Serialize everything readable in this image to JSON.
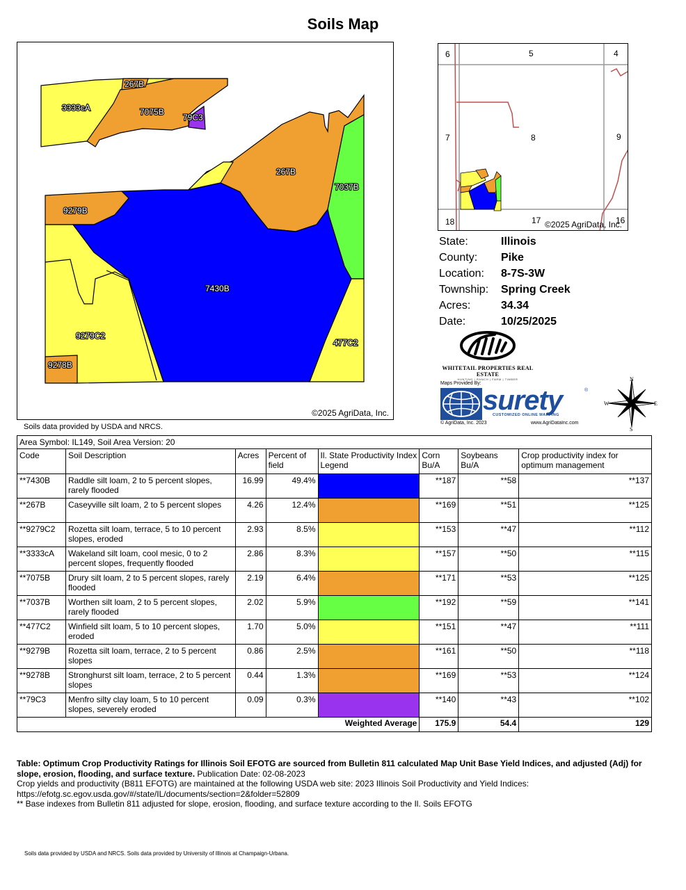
{
  "title": "Soils Map",
  "main_map": {
    "copyright": "©2025 AgriData, Inc.",
    "labels": [
      "267B",
      "3333cA",
      "7075B",
      "79C3",
      "267B",
      "7037B",
      "9279B",
      "7430B",
      "9279C2",
      "477C2",
      "9278B"
    ]
  },
  "soils_credit": "Soils data provided by USDA and NRCS.",
  "location_map": {
    "section_numbers": [
      "6",
      "5",
      "4",
      "7",
      "8",
      "9",
      "18",
      "17",
      "16"
    ],
    "copyright": "©2025 AgriData, Inc."
  },
  "info": [
    {
      "label": "State:",
      "value": "Illinois"
    },
    {
      "label": "County:",
      "value": "Pike"
    },
    {
      "label": "Location:",
      "value": "8-7S-3W"
    },
    {
      "label": "Township:",
      "value": "Spring Creek"
    },
    {
      "label": "Acres:",
      "value": "34.34"
    },
    {
      "label": "Date:",
      "value": "10/25/2025"
    }
  ],
  "whitetail_logo": {
    "name": "WHITETAIL PROPERTIES REAL ESTATE",
    "tagline": "HUNTING | RANCH | FARM | TIMBER"
  },
  "surety_logo": {
    "provided_by": "Maps Provided By:",
    "wordmark": "surety",
    "registered": "®",
    "subtitle": "CUSTOMIZED ONLINE MAPPING",
    "copyright": "© AgriData, Inc. 2023",
    "website": "www.AgriDataInc.com"
  },
  "compass": {
    "n": "N",
    "s": "S",
    "e": "E",
    "w": "W"
  },
  "colors": {
    "blue": "#0000ff",
    "orange": "#f0a030",
    "yellow": "#ffff55",
    "green": "#66ff44",
    "purple": "#9933ee"
  },
  "table": {
    "area_symbol": "Area Symbol: IL149, Soil Area Version: 20",
    "headers": [
      "Code",
      "Soil Description",
      "Acres",
      "Percent of field",
      "Il. State Productivity Index Legend",
      "Corn Bu/A",
      "Soybeans Bu/A",
      "Crop productivity index for optimum management"
    ],
    "rows": [
      {
        "code": "**7430B",
        "desc": "Raddle silt loam, 2 to 5 percent slopes, rarely flooded",
        "acres": "16.99",
        "pct": "49.4%",
        "color": "#0000ff",
        "corn": "**187",
        "soy": "**58",
        "cpi": "**137"
      },
      {
        "code": "**267B",
        "desc": "Caseyville silt loam, 2 to 5 percent slopes",
        "acres": "4.26",
        "pct": "12.4%",
        "color": "#f0a030",
        "corn": "**169",
        "soy": "**51",
        "cpi": "**125"
      },
      {
        "code": "**9279C2",
        "desc": "Rozetta silt loam, terrace, 5 to 10 percent slopes, eroded",
        "acres": "2.93",
        "pct": "8.5%",
        "color": "#ffff55",
        "corn": "**153",
        "soy": "**47",
        "cpi": "**112"
      },
      {
        "code": "**3333cA",
        "desc": "Wakeland silt loam, cool mesic, 0 to 2 percent slopes, frequently flooded",
        "acres": "2.86",
        "pct": "8.3%",
        "color": "#ffff55",
        "corn": "**157",
        "soy": "**50",
        "cpi": "**115"
      },
      {
        "code": "**7075B",
        "desc": "Drury silt loam, 2 to 5 percent slopes, rarely flooded",
        "acres": "2.19",
        "pct": "6.4%",
        "color": "#f0a030",
        "corn": "**171",
        "soy": "**53",
        "cpi": "**125"
      },
      {
        "code": "**7037B",
        "desc": "Worthen silt loam, 2 to 5 percent slopes, rarely flooded",
        "acres": "2.02",
        "pct": "5.9%",
        "color": "#66ff44",
        "corn": "**192",
        "soy": "**59",
        "cpi": "**141"
      },
      {
        "code": "**477C2",
        "desc": "Winfield silt loam, 5 to 10 percent slopes, eroded",
        "acres": "1.70",
        "pct": "5.0%",
        "color": "#ffff55",
        "corn": "**151",
        "soy": "**47",
        "cpi": "**111"
      },
      {
        "code": "**9279B",
        "desc": "Rozetta silt loam, terrace, 2 to 5 percent slopes",
        "acres": "0.86",
        "pct": "2.5%",
        "color": "#f0a030",
        "corn": "**161",
        "soy": "**50",
        "cpi": "**118"
      },
      {
        "code": "**9278B",
        "desc": "Stronghurst silt loam, terrace, 2 to 5 percent slopes",
        "acres": "0.44",
        "pct": "1.3%",
        "color": "#f0a030",
        "corn": "**169",
        "soy": "**53",
        "cpi": "**124"
      },
      {
        "code": "**79C3",
        "desc": "Menfro silty clay loam, 5 to 10 percent slopes, severely eroded",
        "acres": "0.09",
        "pct": "0.3%",
        "color": "#9933ee",
        "corn": "**140",
        "soy": "**43",
        "cpi": "**102"
      }
    ],
    "weighted_label": "Weighted Average",
    "weighted_corn": "175.9",
    "weighted_soy": "54.4",
    "weighted_cpi": "129"
  },
  "notes": {
    "bold": "Table: Optimum Crop Productivity Ratings for Illinois Soil EFOTG are sourced from Bulletin 811 calculated Map Unit Base Yield Indices, and adjusted (Adj) for slope, erosion, flooding, and surface texture.",
    "pub": " Publication Date: 02-08-2023",
    "line2": "Crop yields and productivity (B811 EFOTG) are maintained at the following USDA web site: 2023 Illinois Soil Productivity and Yield Indices:",
    "line3": "https://efotg.sc.egov.usda.gov/#/state/IL/documents/section=2&folder=52809",
    "line4": "** Base indexes from Bulletin 811 adjusted for slope, erosion, flooding, and surface texture according to the Il. Soils EFOTG"
  },
  "bottom_credit": "Soils data provided by USDA and NRCS. Soils data provided by University of Illinois at Champaign-Urbana."
}
